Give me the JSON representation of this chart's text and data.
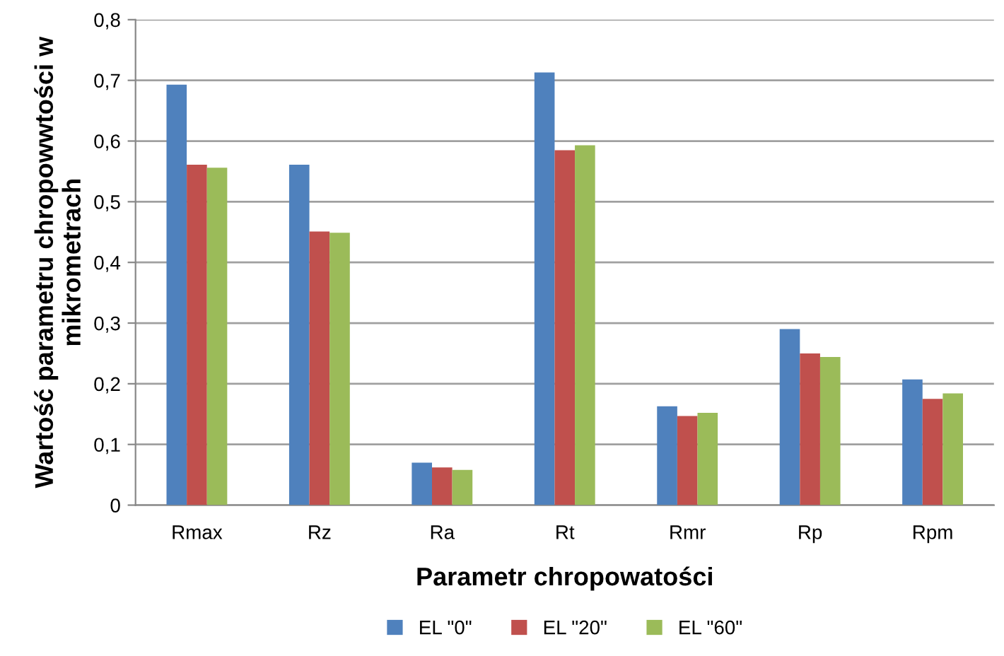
{
  "chart_data": {
    "type": "bar",
    "xlabel": "Parametr chropowatości",
    "ylabel": "Wartość parametru chropowwtości w mikrometrach",
    "categories": [
      "Rmax",
      "Rz",
      "Ra",
      "Rt",
      "Rmr",
      "Rp",
      "Rpm"
    ],
    "series": [
      {
        "name": "EL \"0\"",
        "color": "#4f81bd",
        "values": [
          0.693,
          0.561,
          0.07,
          0.713,
          0.163,
          0.29,
          0.207
        ]
      },
      {
        "name": "EL \"20\"",
        "color": "#c0504d",
        "values": [
          0.561,
          0.451,
          0.062,
          0.585,
          0.147,
          0.25,
          0.175
        ]
      },
      {
        "name": "EL \"60\"",
        "color": "#9bbb59",
        "values": [
          0.556,
          0.449,
          0.058,
          0.593,
          0.152,
          0.244,
          0.184
        ]
      }
    ],
    "ylim": [
      0,
      0.8
    ],
    "yticks": [
      0,
      {
        "value": 0.1,
        "label": "0,1"
      },
      {
        "value": 0.2,
        "label": "0,2"
      },
      {
        "value": 0.3,
        "label": "0,3"
      },
      {
        "value": 0.4,
        "label": "0,4"
      },
      {
        "value": 0.5,
        "label": "0,5"
      },
      {
        "value": 0.6,
        "label": "0,6"
      },
      {
        "value": 0.7,
        "label": "0,7"
      },
      {
        "value": 0.8,
        "label": "0,8"
      }
    ],
    "grid": "y",
    "legend": "bottom"
  }
}
